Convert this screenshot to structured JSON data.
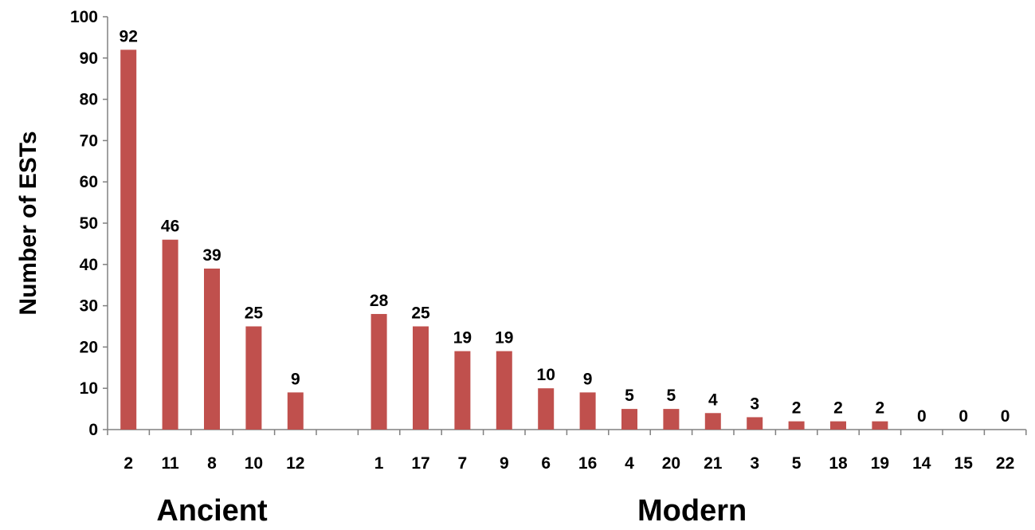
{
  "chart_data": {
    "type": "bar",
    "ylabel": "Number of ESTs",
    "ylim": [
      0,
      100
    ],
    "yticks": [
      0,
      10,
      20,
      30,
      40,
      50,
      60,
      70,
      80,
      90,
      100
    ],
    "bar_color": "#c0504d",
    "groups": [
      {
        "label": "Ancient",
        "categories": [
          "2",
          "11",
          "8",
          "10",
          "12"
        ],
        "values": [
          92,
          46,
          39,
          25,
          9
        ]
      },
      {
        "label": "Modern",
        "categories": [
          "1",
          "17",
          "7",
          "9",
          "6",
          "16",
          "4",
          "20",
          "21",
          "3",
          "5",
          "18",
          "19",
          "14",
          "15",
          "22"
        ],
        "values": [
          28,
          25,
          19,
          19,
          10,
          9,
          5,
          5,
          4,
          3,
          2,
          2,
          2,
          0,
          0,
          0
        ]
      }
    ]
  }
}
